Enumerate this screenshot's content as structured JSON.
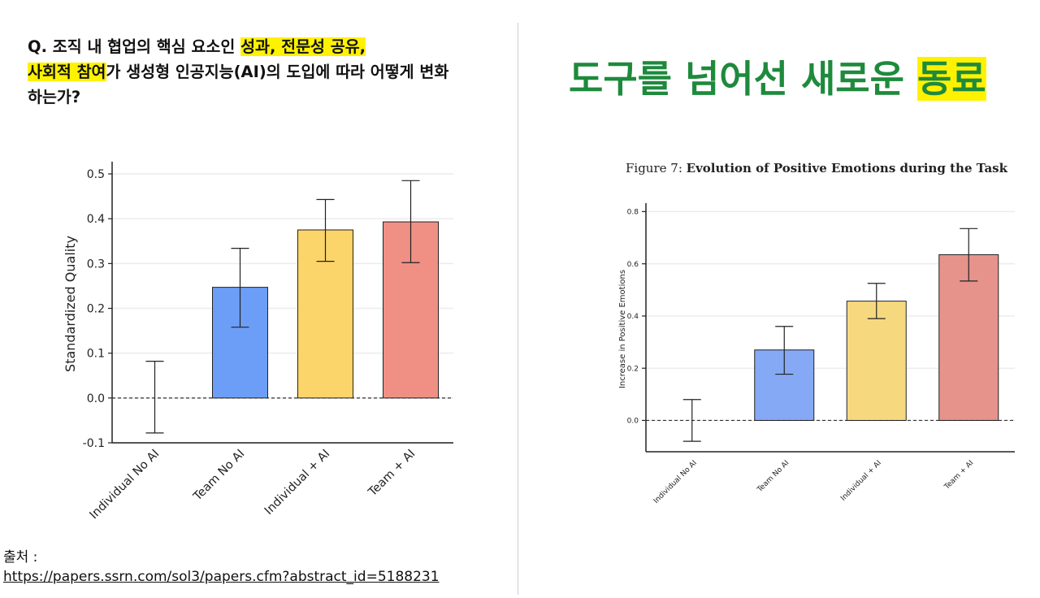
{
  "question": {
    "prefix": "Q. 조직 내 협업의 핵심 요소인 ",
    "highlight1": "성과, 전문성 공유,",
    "highlight2": "사회적 참여",
    "suffix": "가 생성형 인공지능(AI)의 도입에 따라 어떻게 변화하는가?"
  },
  "headline": {
    "text": "도구를 넘어선 새로운 ",
    "highlight": "동료",
    "color": "#1e8a3c",
    "highlight_color": "#fff200"
  },
  "source": {
    "label": "출처 :",
    "url": "https://papers.ssrn.com/sol3/papers.cfm?abstract_id=5188231"
  },
  "chart_data": [
    {
      "type": "bar",
      "title": "",
      "xlabel": "",
      "ylabel": "Standardized Quality",
      "categories": [
        "Individual No AI",
        "Team No AI",
        "Individual + AI",
        "Team + AI"
      ],
      "values": [
        0.0,
        0.247,
        0.375,
        0.393
      ],
      "error_low": [
        -0.078,
        0.158,
        0.305,
        0.302
      ],
      "error_high": [
        0.082,
        0.334,
        0.443,
        0.485
      ],
      "colors": [
        "none",
        "#6d9ef7",
        "#fbd56a",
        "#f08f84"
      ],
      "ylim": [
        -0.1,
        0.52
      ],
      "yticks": [
        -0.1,
        0.0,
        0.1,
        0.2,
        0.3,
        0.4,
        0.5
      ],
      "ytick_labels": [
        "-0.1",
        "0.0",
        "0.1",
        "0.2",
        "0.3",
        "0.4",
        "0.5"
      ],
      "grid": true,
      "zero_line": "dashed"
    },
    {
      "type": "bar",
      "title_prefix": "Figure 7:",
      "title": "Evolution of Positive Emotions during the Task",
      "xlabel": "",
      "ylabel": "Increase in Positive Emotions",
      "categories": [
        "Individual No AI",
        "Team No AI",
        "Individual + AI",
        "Team + AI"
      ],
      "values": [
        0.0,
        0.27,
        0.457,
        0.635
      ],
      "error_low": [
        -0.08,
        0.177,
        0.39,
        0.534
      ],
      "error_high": [
        0.08,
        0.36,
        0.525,
        0.735
      ],
      "colors": [
        "none",
        "#85a9f5",
        "#f6d97e",
        "#e5938b"
      ],
      "ylim": [
        -0.12,
        0.82
      ],
      "yticks": [
        0.0,
        0.2,
        0.4,
        0.6,
        0.8
      ],
      "ytick_labels": [
        "0.0",
        "0.2",
        "0.4",
        "0.6",
        "0.8"
      ],
      "grid": true,
      "zero_line": "dashed"
    }
  ]
}
